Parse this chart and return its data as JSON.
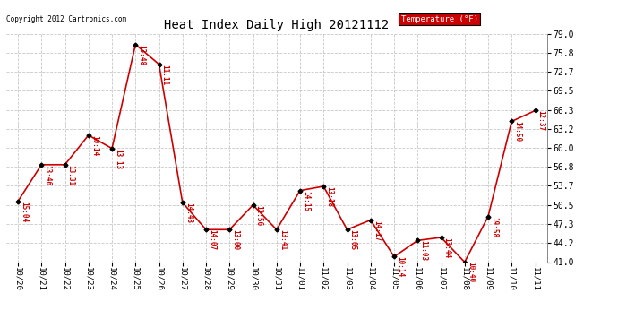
{
  "title": "Heat Index Daily High 20121112",
  "copyright": "Copyright 2012 Cartronics.com",
  "legend_label": "Temperature (°F)",
  "x_labels": [
    "10/20",
    "10/21",
    "10/22",
    "10/23",
    "10/24",
    "10/25",
    "10/26",
    "10/27",
    "10/28",
    "10/29",
    "10/30",
    "10/31",
    "11/01",
    "11/02",
    "11/03",
    "11/04",
    "11/05",
    "11/06",
    "11/07",
    "11/08",
    "11/09",
    "11/10",
    "11/11"
  ],
  "y_values": [
    51.1,
    57.2,
    57.2,
    62.1,
    59.9,
    77.2,
    73.9,
    50.9,
    46.4,
    46.4,
    50.5,
    46.4,
    52.9,
    53.6,
    46.4,
    48.0,
    41.9,
    44.6,
    45.1,
    41.0,
    48.6,
    64.4,
    66.2
  ],
  "time_labels": [
    "15:04",
    "13:46",
    "13:31",
    "10:14",
    "13:13",
    "13:48",
    "11:11",
    "14:43",
    "14:07",
    "13:00",
    "12:56",
    "13:41",
    "14:15",
    "13:18",
    "13:05",
    "14:17",
    "10:14",
    "11:03",
    "13:44",
    "10:40",
    "19:58",
    "14:50",
    "12:37"
  ],
  "ylim": [
    41.0,
    79.0
  ],
  "yticks": [
    41.0,
    44.2,
    47.3,
    50.5,
    53.7,
    56.8,
    60.0,
    63.2,
    66.3,
    69.5,
    72.7,
    75.8,
    79.0
  ],
  "line_color": "#cc0000",
  "marker_color": "#000000",
  "text_color": "#cc0000",
  "bg_color": "#ffffff",
  "grid_color": "#c8c8c8",
  "title_color": "#000000",
  "copyright_color": "#000000",
  "legend_bg": "#cc0000",
  "legend_text": "#ffffff"
}
